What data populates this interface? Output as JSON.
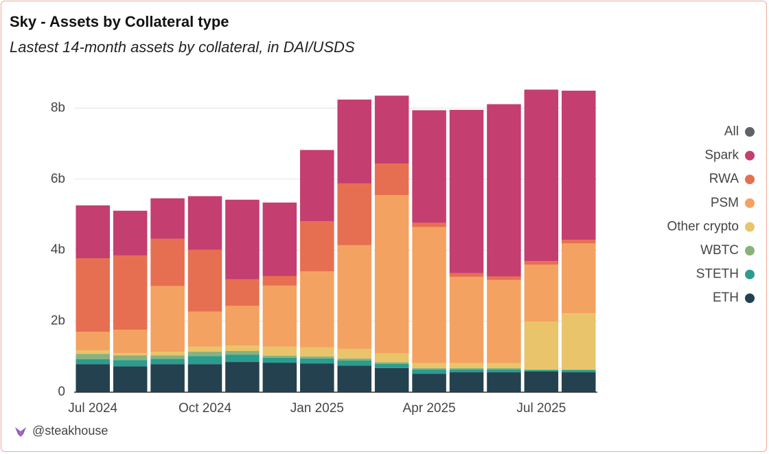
{
  "chart_data": {
    "type": "stacked_bar",
    "title": "Sky - Assets by Collateral type",
    "subtitle": "Lastest 14-month assets by collateral, in DAI/USDS",
    "footer": "@steakhouse",
    "categories": [
      "Jul 2024",
      null,
      null,
      "Oct 2024",
      null,
      null,
      "Jan 2025",
      null,
      null,
      "Apr 2025",
      null,
      null,
      "Jul 2025",
      null
    ],
    "series": [
      {
        "name": "All",
        "color": "#5f6368",
        "values": [
          null,
          null,
          null,
          null,
          null,
          null,
          null,
          null,
          null,
          null,
          null,
          null,
          null,
          null
        ]
      },
      {
        "name": "Spark",
        "color": "#c43e6f",
        "values": [
          1.49,
          1.26,
          1.14,
          1.51,
          2.24,
          2.07,
          2.01,
          2.36,
          1.91,
          3.17,
          4.6,
          4.85,
          4.83,
          4.2
        ]
      },
      {
        "name": "RWA",
        "color": "#e76f51",
        "values": [
          2.07,
          2.09,
          1.33,
          1.74,
          0.75,
          0.27,
          1.41,
          1.74,
          0.89,
          0.12,
          0.1,
          0.1,
          0.1,
          0.1
        ]
      },
      {
        "name": "PSM",
        "color": "#f4a261",
        "values": [
          0.52,
          0.66,
          1.85,
          0.99,
          1.12,
          1.72,
          2.14,
          2.92,
          4.46,
          3.83,
          2.43,
          2.34,
          1.6,
          1.97
        ]
      },
      {
        "name": "Other crypto",
        "color": "#e9c46a",
        "values": [
          0.1,
          0.06,
          0.1,
          0.14,
          0.15,
          0.25,
          0.25,
          0.27,
          0.25,
          0.14,
          0.14,
          0.14,
          1.35,
          1.58
        ]
      },
      {
        "name": "WBTC",
        "color": "#8ab17d",
        "values": [
          0.15,
          0.14,
          0.1,
          0.12,
          0.1,
          0.06,
          0.06,
          0.06,
          0.04,
          0.04,
          0.04,
          0.04,
          0.02,
          0.02
        ]
      },
      {
        "name": "STETH",
        "color": "#2a9d8f",
        "values": [
          0.14,
          0.17,
          0.15,
          0.23,
          0.21,
          0.14,
          0.14,
          0.14,
          0.12,
          0.12,
          0.08,
          0.08,
          0.04,
          0.06
        ]
      },
      {
        "name": "ETH",
        "color": "#24414f",
        "values": [
          0.79,
          0.73,
          0.79,
          0.79,
          0.85,
          0.83,
          0.81,
          0.75,
          0.68,
          0.52,
          0.56,
          0.56,
          0.58,
          0.56
        ]
      }
    ],
    "ylim": [
      0,
      8.8
    ],
    "yticks": [
      {
        "value": 0,
        "label": "0"
      },
      {
        "value": 2,
        "label": "2b"
      },
      {
        "value": 4,
        "label": "4b"
      },
      {
        "value": 6,
        "label": "6b"
      },
      {
        "value": 8,
        "label": "8b"
      }
    ],
    "grid": true,
    "legend": "right"
  }
}
